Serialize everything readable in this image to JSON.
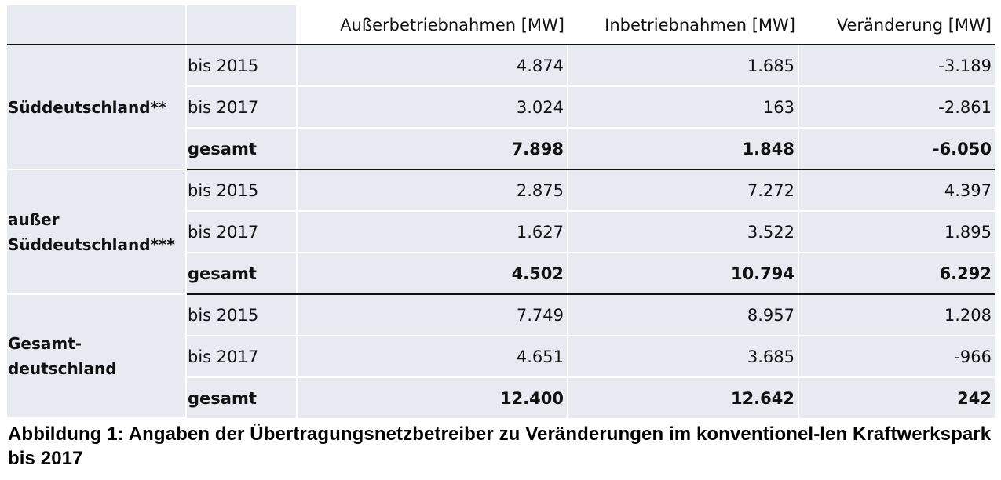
{
  "table": {
    "headers": [
      "",
      "",
      "Außerbetriebnahmen [MW]",
      "Inbetriebnahmen [MW]",
      "Veränderung [MW]"
    ],
    "groups": [
      {
        "region": "Süddeutschland**",
        "rows": [
          {
            "period": "bis 2015",
            "ausser": "4.874",
            "inbetrieb": "1.685",
            "veraenderung": "-3.189"
          },
          {
            "period": "bis 2017",
            "ausser": "3.024",
            "inbetrieb": "163",
            "veraenderung": "-2.861"
          },
          {
            "period": "gesamt",
            "ausser": "7.898",
            "inbetrieb": "1.848",
            "veraenderung": "-6.050"
          }
        ]
      },
      {
        "region": "außer Süddeutschland***",
        "rows": [
          {
            "period": "bis 2015",
            "ausser": "2.875",
            "inbetrieb": "7.272",
            "veraenderung": "4.397"
          },
          {
            "period": "bis 2017",
            "ausser": "1.627",
            "inbetrieb": "3.522",
            "veraenderung": "1.895"
          },
          {
            "period": "gesamt",
            "ausser": "4.502",
            "inbetrieb": "10.794",
            "veraenderung": "6.292"
          }
        ]
      },
      {
        "region": "Gesamt-deutschland",
        "rows": [
          {
            "period": "bis 2015",
            "ausser": "7.749",
            "inbetrieb": "8.957",
            "veraenderung": "1.208"
          },
          {
            "period": "bis 2017",
            "ausser": "4.651",
            "inbetrieb": "3.685",
            "veraenderung": "-966"
          },
          {
            "period": "gesamt",
            "ausser": "12.400",
            "inbetrieb": "12.642",
            "veraenderung": "242"
          }
        ]
      }
    ]
  },
  "caption": "Abbildung 1: Angaben der Übertragungsnetzbetreiber zu Veränderungen im konventionel-len Kraftwerkspark bis 2017",
  "colors": {
    "cell_fill": "#e7eaf1",
    "rule": "#111111",
    "text": "#111111"
  }
}
